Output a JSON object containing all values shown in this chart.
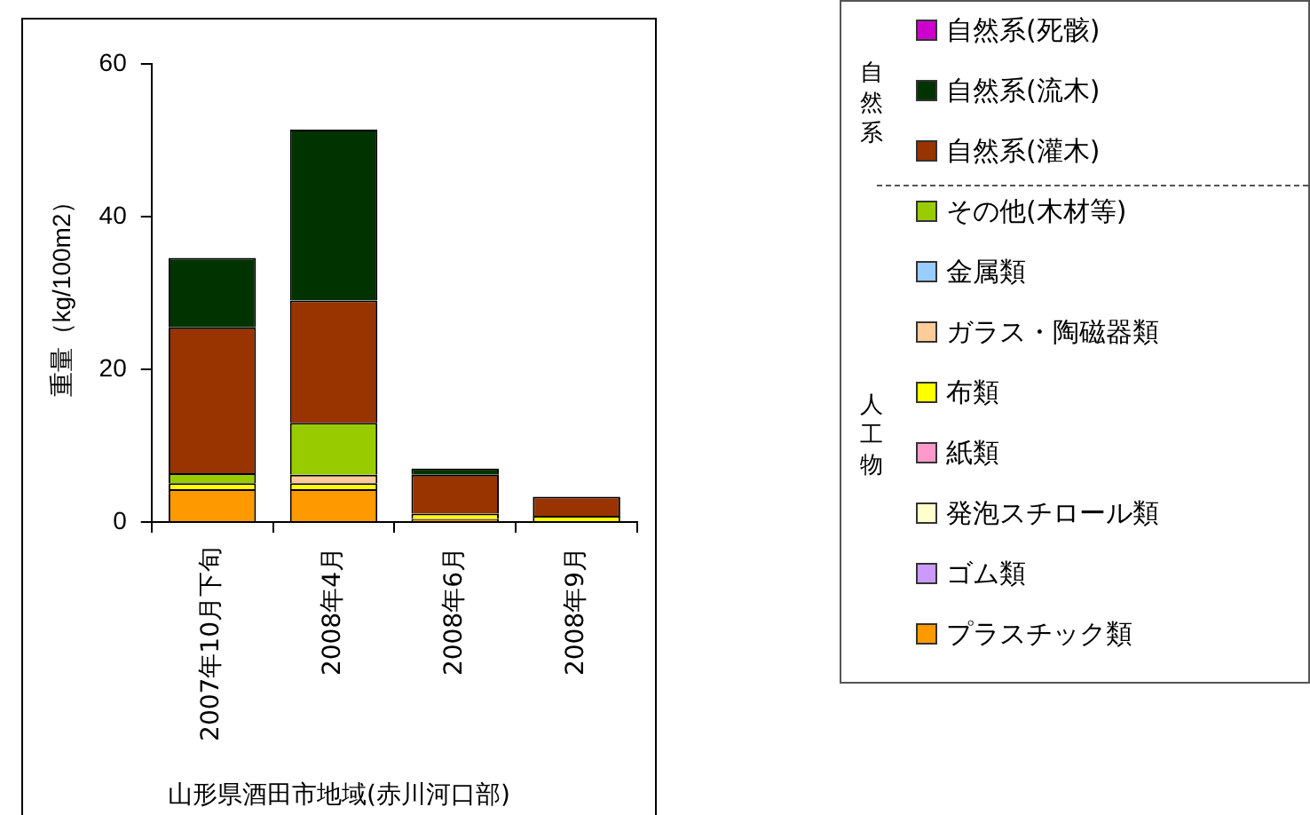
{
  "chart_data": {
    "type": "bar",
    "stacked": true,
    "xlabel": "山形県酒田市地域(赤川河口部)",
    "ylabel": "重量（kg/100m2）",
    "categories": [
      "2007年10月下旬",
      "2008年4月",
      "2008年6月",
      "2008年9月"
    ],
    "ylim": [
      0,
      60
    ],
    "yticks": [
      0,
      20,
      40,
      60
    ],
    "legend": "right",
    "annotations": [
      "自然系",
      "人工物"
    ],
    "series": [
      {
        "name": "プラスチック類",
        "color": "#ff9900",
        "values": [
          4.3,
          4.3,
          0.4,
          0
        ]
      },
      {
        "name": "ゴム類",
        "color": "#cc99ff",
        "values": [
          0,
          0,
          0,
          0
        ]
      },
      {
        "name": "発泡スチロール類",
        "color": "#ffffcc",
        "values": [
          0,
          0,
          0,
          0
        ]
      },
      {
        "name": "紙類",
        "color": "#ff99cc",
        "values": [
          0,
          0,
          0,
          0
        ]
      },
      {
        "name": "布類",
        "color": "#ffff00",
        "values": [
          0.8,
          0.8,
          0.7,
          0.8
        ]
      },
      {
        "name": "ガラス・陶磁器類",
        "color": "#ffcc99",
        "values": [
          0,
          1.1,
          0,
          0
        ]
      },
      {
        "name": "金属類",
        "color": "#99ccff",
        "values": [
          0,
          0,
          0,
          0
        ]
      },
      {
        "name": "その他(木材等)",
        "color": "#99cc00",
        "values": [
          1.3,
          6.8,
          0,
          0
        ]
      },
      {
        "name": "自然系(灌木)",
        "color": "#993300",
        "values": [
          19.1,
          16.0,
          5.1,
          2.5
        ]
      },
      {
        "name": "自然系(流木)",
        "color": "#003300",
        "values": [
          9.1,
          22.4,
          0.8,
          0
        ]
      },
      {
        "name": "自然系(死骸)",
        "color": "#cc00cc",
        "values": [
          0,
          0,
          0,
          0
        ]
      }
    ]
  }
}
